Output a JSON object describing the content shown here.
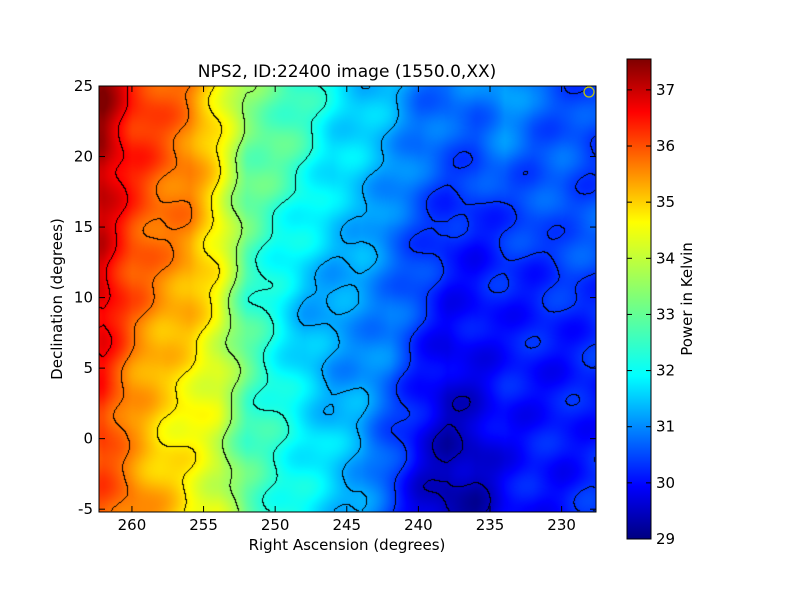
{
  "chart_data": {
    "type": "heatmap",
    "title": "NPS2, ID:22400 image (1550.0,XX)",
    "xlabel": "Right Ascension (degrees)",
    "ylabel": "Declination (degrees)",
    "x_inverted": true,
    "xlim": [
      262.3,
      227.6
    ],
    "ylim": [
      -5.2,
      25.0
    ],
    "x_ticks": [
      260,
      255,
      250,
      245,
      240,
      235,
      230
    ],
    "y_ticks": [
      -5,
      0,
      5,
      10,
      15,
      20,
      25
    ],
    "grid": false,
    "contours": true,
    "colormap": "jet",
    "colorbar": {
      "label": "Power in Kelvin",
      "min": 29.0,
      "max": 37.55,
      "ticks": [
        29,
        30,
        31,
        32,
        33,
        34,
        35,
        36,
        37
      ]
    },
    "x_samples": [
      262,
      260,
      258,
      256,
      254,
      252,
      250,
      248,
      246,
      244,
      242,
      240,
      238,
      236,
      234,
      232,
      230,
      228
    ],
    "y_samples": [
      -5,
      0,
      5,
      10,
      15,
      20,
      25
    ],
    "values": [
      [
        35.7,
        35.6,
        35.0,
        34.4,
        34.0,
        33.0,
        32.6,
        32.2,
        31.8,
        31.4,
        30.6,
        29.8,
        29.3,
        29.4,
        30.0,
        30.2,
        30.2,
        30.4
      ],
      [
        36.0,
        35.1,
        34.6,
        34.3,
        33.9,
        32.8,
        32.5,
        32.2,
        31.8,
        31.5,
        30.7,
        30.0,
        29.5,
        29.6,
        30.1,
        30.2,
        30.2,
        30.3
      ],
      [
        36.3,
        35.4,
        34.8,
        34.5,
        34.0,
        33.0,
        32.4,
        31.8,
        31.4,
        31.3,
        31.0,
        30.3,
        29.8,
        30.0,
        30.2,
        30.2,
        30.2,
        30.3
      ],
      [
        36.8,
        35.7,
        35.3,
        35.0,
        34.2,
        32.8,
        32.2,
        31.6,
        31.4,
        31.3,
        31.1,
        30.6,
        30.2,
        30.1,
        30.3,
        30.3,
        30.4,
        30.5
      ],
      [
        36.8,
        36.0,
        35.5,
        35.3,
        34.4,
        33.0,
        32.5,
        32.2,
        31.8,
        31.6,
        31.0,
        30.7,
        30.3,
        30.3,
        30.5,
        30.6,
        30.8,
        30.8
      ],
      [
        37.2,
        36.2,
        35.8,
        35.4,
        34.4,
        33.2,
        33.0,
        32.6,
        32.0,
        31.8,
        31.5,
        31.0,
        30.8,
        30.7,
        31.0,
        30.8,
        30.8,
        30.6
      ],
      [
        37.4,
        36.3,
        35.8,
        35.4,
        34.5,
        33.3,
        33.0,
        32.6,
        32.2,
        31.8,
        31.6,
        31.1,
        30.9,
        31.1,
        31.5,
        31.0,
        30.8,
        30.6
      ]
    ]
  },
  "marker_color": "#c8c800"
}
